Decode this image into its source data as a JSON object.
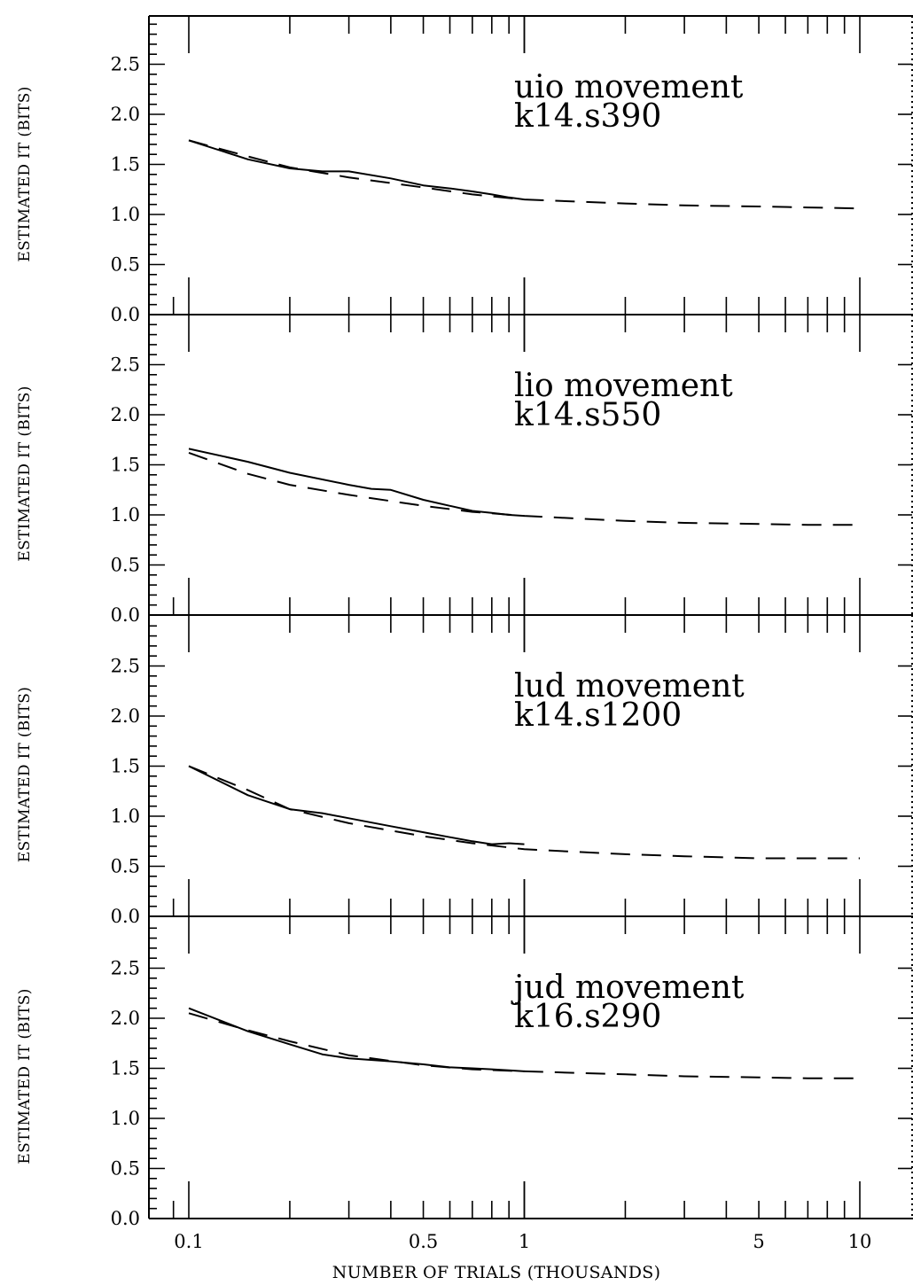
{
  "chart_data": {
    "type": "line",
    "xscale": "log",
    "xlabel": "NUMBER OF TRIALS (THOUSANDS)",
    "x_tick_labels": [
      "0.1",
      "0.5",
      "1",
      "5",
      "10"
    ],
    "x_tick_values": [
      0.1,
      0.5,
      1,
      5,
      10
    ],
    "y_tick_labels": [
      "0.0",
      "0.5",
      "1.0",
      "1.5",
      "2.0",
      "2.5"
    ],
    "y_tick_values": [
      0,
      0.5,
      1.0,
      1.5,
      2.0,
      2.5
    ],
    "panels": [
      {
        "ylabel": "ESTIMATED IT (BITS)",
        "annotation_line1": "uio movement",
        "annotation_line2": "k14.s390",
        "ylim": [
          0,
          3.0
        ],
        "solid": {
          "x": [
            0.1,
            0.15,
            0.2,
            0.25,
            0.3,
            0.4,
            0.5,
            0.6,
            0.7,
            0.8,
            0.9,
            1.0
          ],
          "y": [
            1.74,
            1.55,
            1.46,
            1.43,
            1.43,
            1.36,
            1.29,
            1.26,
            1.23,
            1.2,
            1.17,
            1.15
          ]
        },
        "dashed": {
          "x": [
            0.1,
            0.15,
            0.2,
            0.3,
            0.5,
            0.7,
            1,
            2,
            3,
            5,
            7,
            10
          ],
          "y": [
            1.74,
            1.58,
            1.47,
            1.37,
            1.27,
            1.2,
            1.15,
            1.11,
            1.09,
            1.08,
            1.07,
            1.06
          ]
        }
      },
      {
        "ylabel": "ESTIMATED IT (BITS)",
        "annotation_line1": "lio movement",
        "annotation_line2": "k14.s550",
        "ylim": [
          0,
          3.0
        ],
        "solid": {
          "x": [
            0.1,
            0.15,
            0.2,
            0.3,
            0.35,
            0.4,
            0.5,
            0.6,
            0.7,
            0.8,
            0.9,
            1.0
          ],
          "y": [
            1.66,
            1.53,
            1.42,
            1.3,
            1.26,
            1.25,
            1.15,
            1.09,
            1.04,
            1.02,
            1.0,
            0.99
          ]
        },
        "dashed": {
          "x": [
            0.1,
            0.15,
            0.2,
            0.3,
            0.5,
            0.7,
            1,
            2,
            3,
            5,
            7,
            10
          ],
          "y": [
            1.62,
            1.41,
            1.3,
            1.2,
            1.09,
            1.03,
            0.99,
            0.94,
            0.92,
            0.91,
            0.9,
            0.9
          ]
        }
      },
      {
        "ylabel": "ESTIMATED IT (BITS)",
        "annotation_line1": "lud movement",
        "annotation_line2": "k14.s1200",
        "ylim": [
          0,
          3.0
        ],
        "solid": {
          "x": [
            0.1,
            0.15,
            0.2,
            0.25,
            0.3,
            0.4,
            0.5,
            0.6,
            0.7,
            0.8,
            0.9,
            1.0
          ],
          "y": [
            1.5,
            1.21,
            1.07,
            1.03,
            0.98,
            0.9,
            0.84,
            0.79,
            0.75,
            0.72,
            0.73,
            0.72
          ]
        },
        "dashed": {
          "x": [
            0.1,
            0.15,
            0.2,
            0.3,
            0.5,
            0.7,
            1,
            2,
            3,
            5,
            7,
            10
          ],
          "y": [
            1.5,
            1.26,
            1.07,
            0.93,
            0.8,
            0.73,
            0.67,
            0.62,
            0.6,
            0.58,
            0.58,
            0.58
          ]
        }
      },
      {
        "ylabel": "ESTIMATED IT (BITS)",
        "annotation_line1": "jud movement",
        "annotation_line2": "k16.s290",
        "ylim": [
          0,
          3.0
        ],
        "solid": {
          "x": [
            0.1,
            0.15,
            0.2,
            0.25,
            0.3,
            0.4,
            0.5,
            0.6,
            0.7,
            0.8,
            0.9,
            1.0
          ],
          "y": [
            2.1,
            1.87,
            1.74,
            1.64,
            1.6,
            1.57,
            1.54,
            1.51,
            1.5,
            1.49,
            1.48,
            1.47
          ]
        },
        "dashed": {
          "x": [
            0.1,
            0.15,
            0.2,
            0.3,
            0.5,
            0.7,
            1,
            2,
            3,
            5,
            7,
            10
          ],
          "y": [
            2.05,
            1.88,
            1.77,
            1.63,
            1.53,
            1.49,
            1.47,
            1.44,
            1.42,
            1.41,
            1.4,
            1.4
          ]
        }
      }
    ]
  }
}
